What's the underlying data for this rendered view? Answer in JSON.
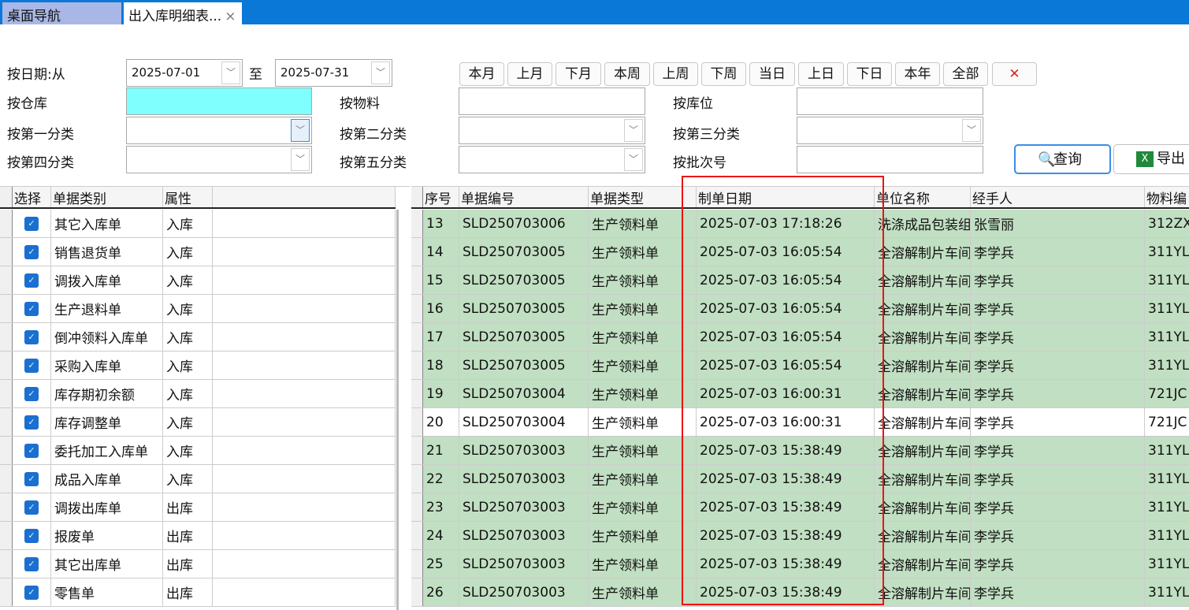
{
  "tabs": [
    {
      "label": "桌面导航"
    },
    {
      "label": "出入库明细表...",
      "close": "×"
    }
  ],
  "filters": {
    "date_label": "按日期:从",
    "date_from": "2025-07-01",
    "date_to_label": "至",
    "date_to": "2025-07-31",
    "warehouse_label": "按仓库",
    "warehouse_color": "#80ffff",
    "material_label": "按物料",
    "location_label": "按库位",
    "cat1_label": "按第一分类",
    "cat2_label": "按第二分类",
    "cat3_label": "按第三分类",
    "cat4_label": "按第四分类",
    "cat5_label": "按第五分类",
    "batch_label": "按批次号"
  },
  "quick_buttons": [
    "本月",
    "上月",
    "下月",
    "本周",
    "上周",
    "下周",
    "当日",
    "上日",
    "下日",
    "本年",
    "全部"
  ],
  "actions": {
    "query": "查询",
    "export": "导出"
  },
  "left_grid": {
    "headers": [
      "选择",
      "单据类别",
      "属性"
    ],
    "rows": [
      [
        "其它入库单",
        "入库"
      ],
      [
        "销售退货单",
        "入库"
      ],
      [
        "调拨入库单",
        "入库"
      ],
      [
        "生产退料单",
        "入库"
      ],
      [
        "倒冲领料入库单",
        "入库"
      ],
      [
        "采购入库单",
        "入库"
      ],
      [
        "库存期初余额",
        "入库"
      ],
      [
        "库存调整单",
        "入库"
      ],
      [
        "委托加工入库单",
        "入库"
      ],
      [
        "成品入库单",
        "入库"
      ],
      [
        "调拨出库单",
        "出库"
      ],
      [
        "报废单",
        "出库"
      ],
      [
        "其它出库单",
        "出库"
      ],
      [
        "零售单",
        "出库"
      ]
    ]
  },
  "right_grid": {
    "headers": [
      "序号",
      "单据编号",
      "单据类型",
      "制单日期",
      "单位名称",
      "经手人",
      "物料编"
    ],
    "rows": [
      [
        "13",
        "SLD250703006",
        "生产领料单",
        "2025-07-03 17:18:26",
        "洗涤成品包装组",
        "张雪丽",
        "312ZX"
      ],
      [
        "14",
        "SLD250703005",
        "生产领料单",
        "2025-07-03 16:05:54",
        "全溶解制片车间",
        "李学兵",
        "311YL"
      ],
      [
        "15",
        "SLD250703005",
        "生产领料单",
        "2025-07-03 16:05:54",
        "全溶解制片车间",
        "李学兵",
        "311YL"
      ],
      [
        "16",
        "SLD250703005",
        "生产领料单",
        "2025-07-03 16:05:54",
        "全溶解制片车间",
        "李学兵",
        "311YL"
      ],
      [
        "17",
        "SLD250703005",
        "生产领料单",
        "2025-07-03 16:05:54",
        "全溶解制片车间",
        "李学兵",
        "311YL"
      ],
      [
        "18",
        "SLD250703005",
        "生产领料单",
        "2025-07-03 16:05:54",
        "全溶解制片车间",
        "李学兵",
        "311YL"
      ],
      [
        "19",
        "SLD250703004",
        "生产领料单",
        "2025-07-03 16:00:31",
        "全溶解制片车间",
        "李学兵",
        "721JC"
      ],
      [
        "20",
        "SLD250703004",
        "生产领料单",
        "2025-07-03 16:00:31",
        "全溶解制片车间",
        "李学兵",
        "721JC"
      ],
      [
        "21",
        "SLD250703003",
        "生产领料单",
        "2025-07-03 15:38:49",
        "全溶解制片车间",
        "李学兵",
        "311YL"
      ],
      [
        "22",
        "SLD250703003",
        "生产领料单",
        "2025-07-03 15:38:49",
        "全溶解制片车间",
        "李学兵",
        "311YL"
      ],
      [
        "23",
        "SLD250703003",
        "生产领料单",
        "2025-07-03 15:38:49",
        "全溶解制片车间",
        "李学兵",
        "311YL"
      ],
      [
        "24",
        "SLD250703003",
        "生产领料单",
        "2025-07-03 15:38:49",
        "全溶解制片车间",
        "李学兵",
        "311YL"
      ],
      [
        "25",
        "SLD250703003",
        "生产领料单",
        "2025-07-03 15:38:49",
        "全溶解制片车间",
        "李学兵",
        "311YL"
      ],
      [
        "26",
        "SLD250703003",
        "生产领料单",
        "2025-07-03 15:38:49",
        "全溶解制片车间",
        "李学兵",
        "311YL"
      ]
    ],
    "selected_row": "20",
    "row_color": "#c1dfc2",
    "highlight_color": "#ee1111"
  }
}
